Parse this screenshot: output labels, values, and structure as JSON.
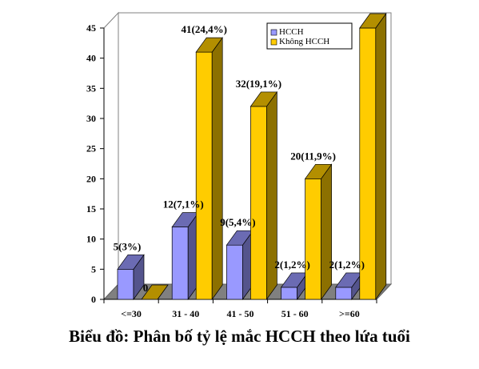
{
  "chart_data": {
    "type": "bar",
    "title": "Biểu đồ: Phân bố tỷ lệ mắc HCCH theo lứa tuổi",
    "categories": [
      "<=30",
      "31 - 40",
      "41 - 50",
      "51 - 60",
      ">=60"
    ],
    "yticks": [
      "0",
      "5",
      "10",
      "15",
      "20",
      "25",
      "30",
      "35",
      "40",
      "45"
    ],
    "ylim": [
      0,
      45
    ],
    "grid": false,
    "legend_position": "top-right",
    "series": [
      {
        "name": "HCCH",
        "color": "#9999ff",
        "values": [
          5,
          12,
          9,
          2,
          2
        ],
        "labels": [
          "5(3%)",
          "12(7,1%)",
          "9(5,4%)",
          "2(1,2%)",
          "2(1,2%)"
        ]
      },
      {
        "name": "Không HCCH",
        "color": "#ffcc00",
        "values": [
          0,
          41,
          32,
          20,
          45
        ],
        "labels": [
          "0",
          "41(24,4%)",
          "32(19,1%)",
          "20(11,9%)",
          ""
        ]
      }
    ]
  }
}
